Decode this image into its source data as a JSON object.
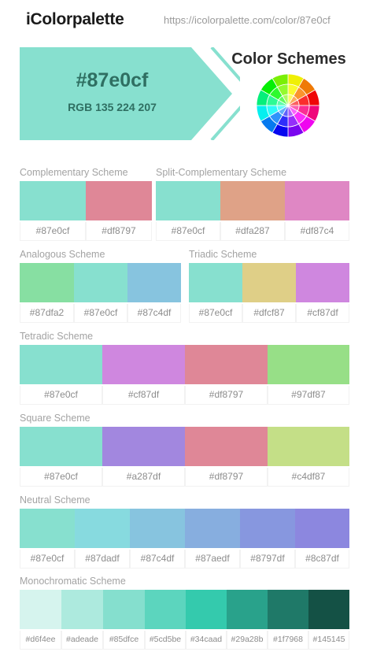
{
  "header": {
    "logo": "iColorpalette",
    "url": "https://icolorpalette.com/color/87e0cf"
  },
  "hero": {
    "hex": "#87e0cf",
    "rgb": "RGB 135 224 207",
    "color": "#87e0cf"
  },
  "color_schemes_title": "Color Schemes",
  "wheel_icon": "color-wheel-icon",
  "schemes": {
    "complementary": {
      "title": "Complementary Scheme",
      "colors": [
        "#87e0cf",
        "#df8797"
      ],
      "labels": [
        "#87e0cf",
        "#df8797"
      ]
    },
    "split": {
      "title": "Split-Complementary Scheme",
      "colors": [
        "#87e0cf",
        "#dfa287",
        "#df87c4"
      ],
      "labels": [
        "#87e0cf",
        "#dfa287",
        "#df87c4"
      ]
    },
    "analogous": {
      "title": "Analogous Scheme",
      "colors": [
        "#87dfa2",
        "#87e0cf",
        "#87c4df"
      ],
      "labels": [
        "#87dfa2",
        "#87e0cf",
        "#87c4df"
      ]
    },
    "triadic": {
      "title": "Triadic Scheme",
      "colors": [
        "#87e0cf",
        "#dfcf87",
        "#cf87df"
      ],
      "labels": [
        "#87e0cf",
        "#dfcf87",
        "#cf87df"
      ]
    },
    "tetradic": {
      "title": "Tetradic Scheme",
      "colors": [
        "#87e0cf",
        "#cf87df",
        "#df8797",
        "#97df87"
      ],
      "labels": [
        "#87e0cf",
        "#cf87df",
        "#df8797",
        "#97df87"
      ]
    },
    "square": {
      "title": "Square Scheme",
      "colors": [
        "#87e0cf",
        "#a287df",
        "#df8797",
        "#c4df87"
      ],
      "labels": [
        "#87e0cf",
        "#a287df",
        "#df8797",
        "#c4df87"
      ]
    },
    "neutral": {
      "title": "Neutral Scheme",
      "colors": [
        "#87e0cf",
        "#87dadf",
        "#87c4df",
        "#87aedf",
        "#8797df",
        "#8c87df"
      ],
      "labels": [
        "#87e0cf",
        "#87dadf",
        "#87c4df",
        "#87aedf",
        "#8797df",
        "#8c87df"
      ]
    },
    "mono": {
      "title": "Monochromatic Scheme",
      "colors": [
        "#d6f4ee",
        "#adeade",
        "#85dfce",
        "#5cd5be",
        "#34caad",
        "#29a28b",
        "#1f7968",
        "#145145"
      ],
      "labels": [
        "#d6f4ee",
        "#adeade",
        "#85dfce",
        "#5cd5be",
        "#34caad",
        "#29a28b",
        "#1f7968",
        "#145145"
      ]
    }
  }
}
